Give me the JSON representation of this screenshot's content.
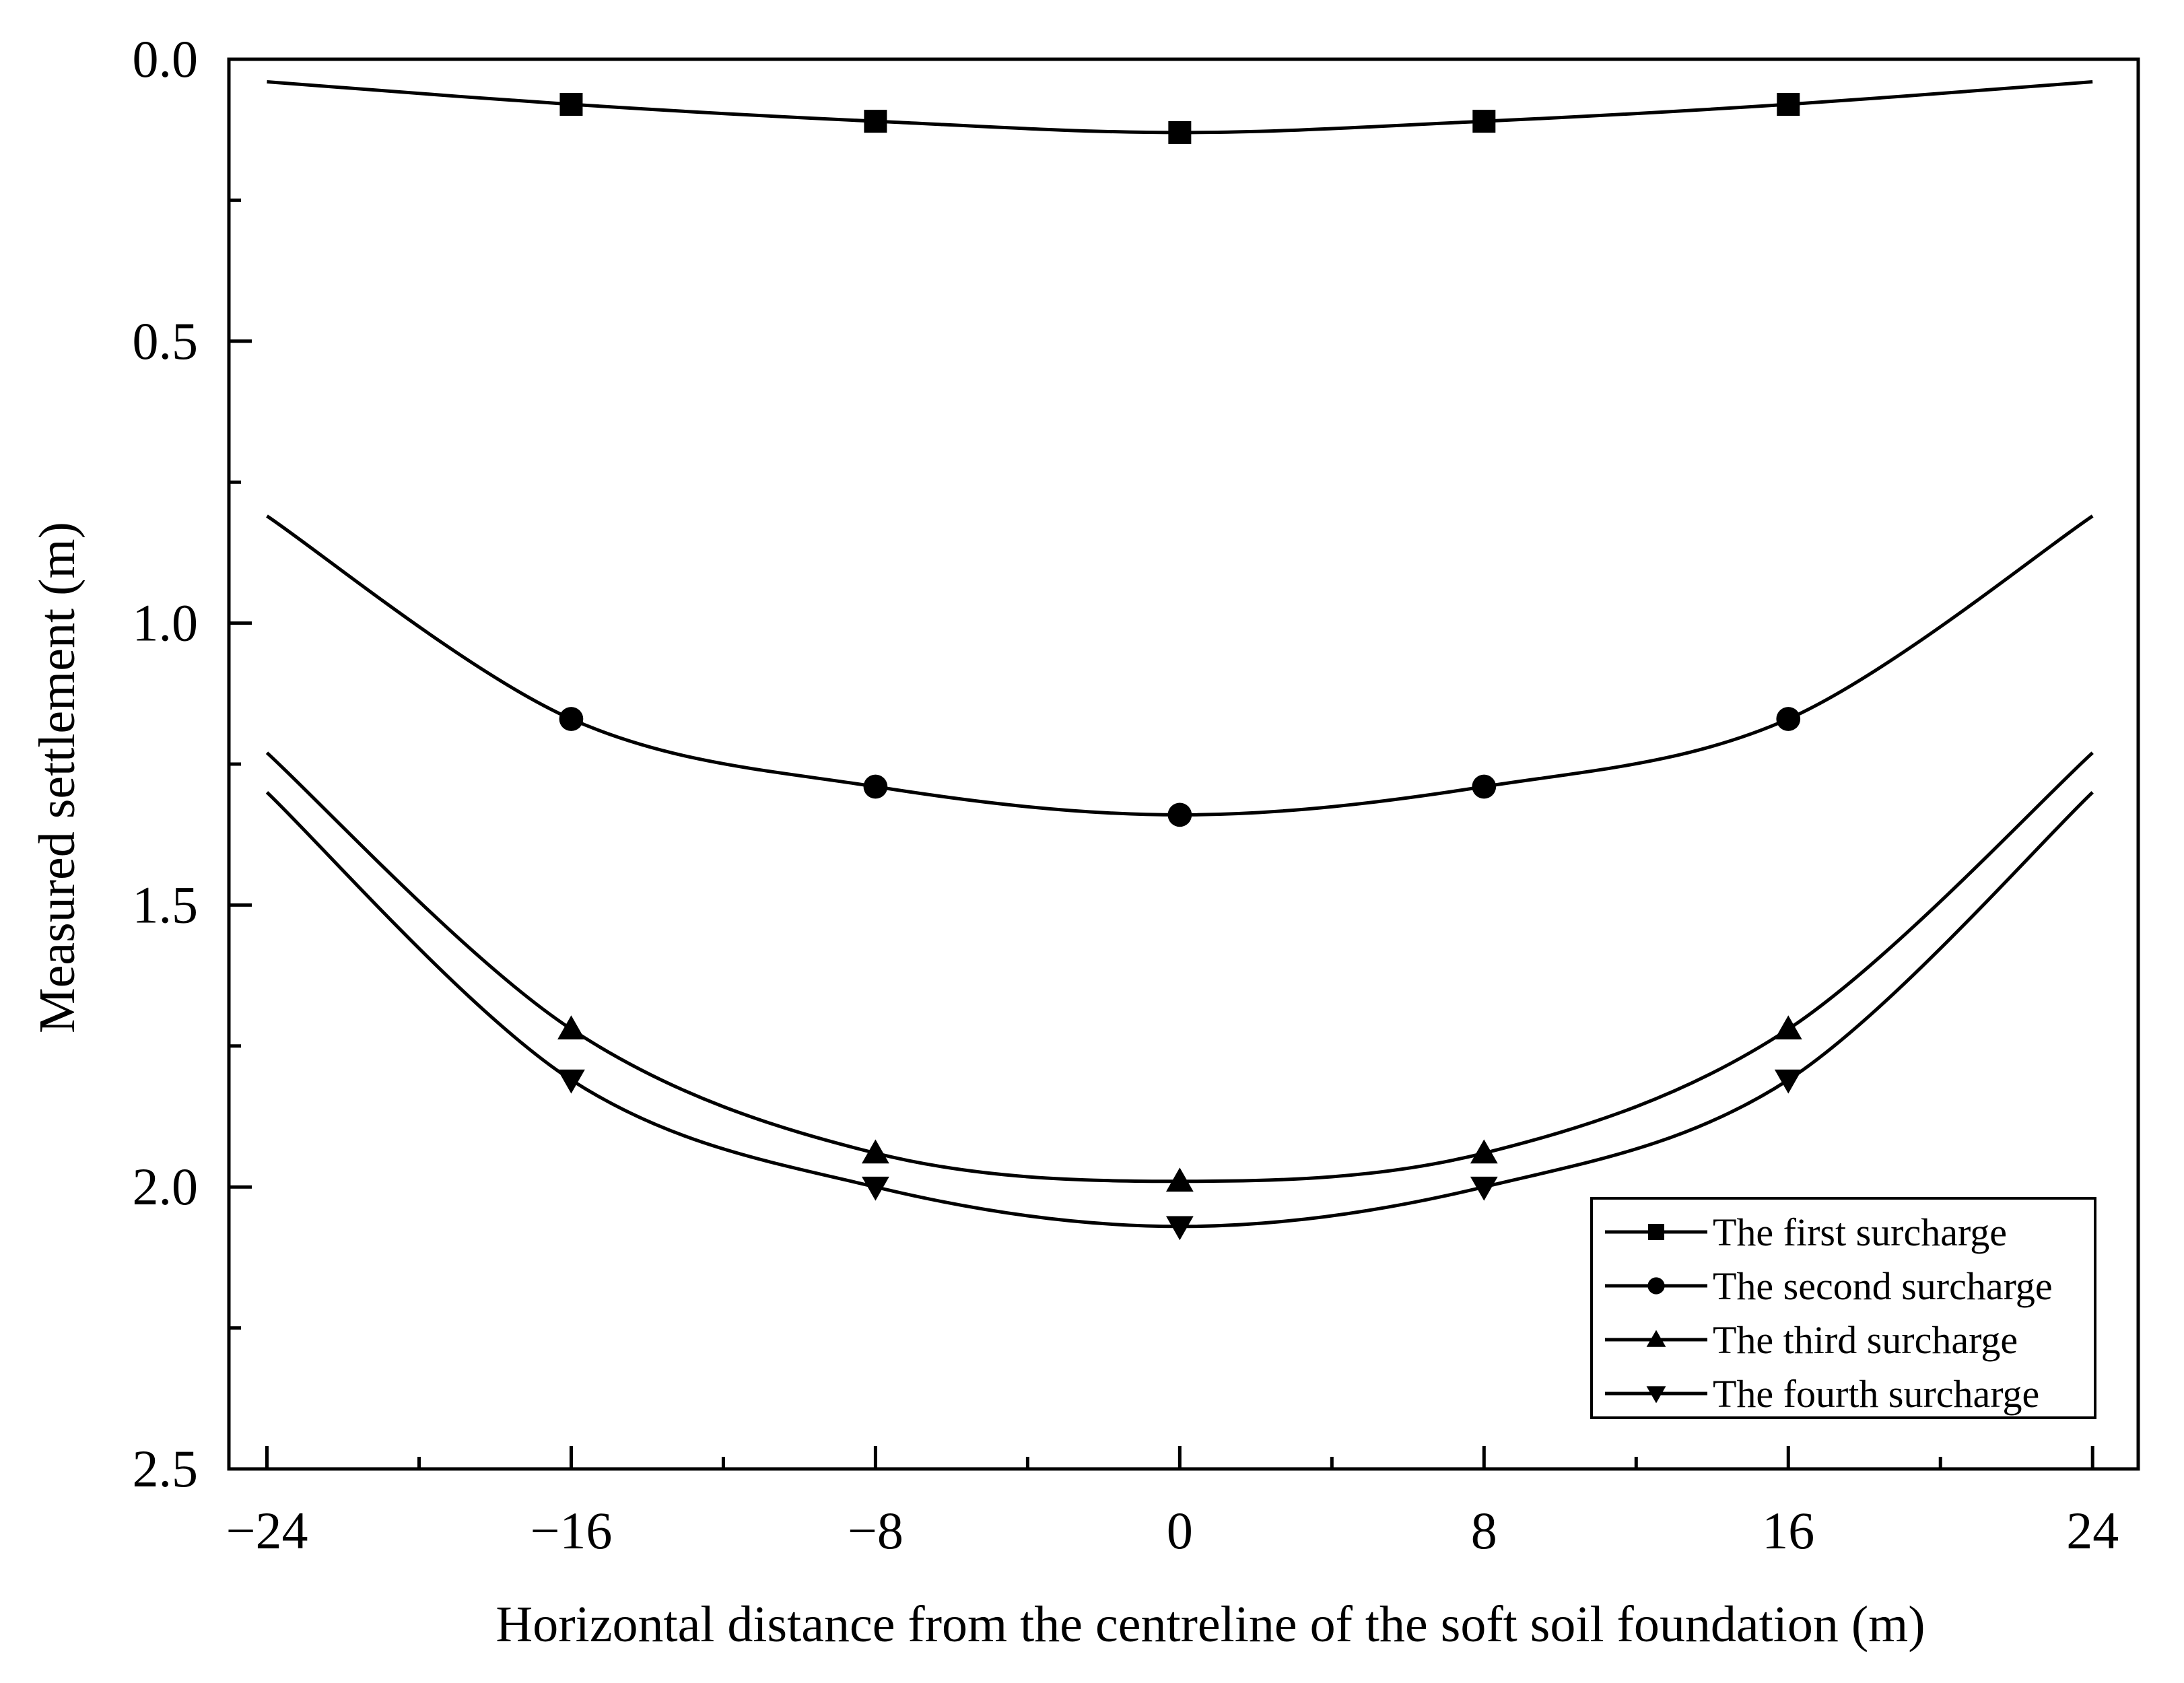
{
  "chart_data": {
    "type": "line",
    "xlabel": "Horizontal distance from the centreline of the soft soil foundation (m)",
    "ylabel": "Measured settlement (m)",
    "xlim": [
      -25,
      25.2
    ],
    "ylim": [
      0.0,
      2.5
    ],
    "y_inverted": true,
    "x_ticks": [
      -24,
      -16,
      -8,
      0,
      8,
      16,
      24
    ],
    "x_tick_labels": [
      "−24",
      "−16",
      "−8",
      "0",
      "8",
      "16",
      "24"
    ],
    "y_ticks": [
      0.0,
      0.5,
      1.0,
      1.5,
      2.0,
      2.5
    ],
    "y_tick_labels": [
      "0.0",
      "0.5",
      "1.0",
      "1.5",
      "2.0",
      "2.5"
    ],
    "grid": false,
    "legend_position": "bottom-right",
    "x": [
      -24,
      -16,
      -8,
      0,
      8,
      16,
      24
    ],
    "series": [
      {
        "name": "The first surcharge",
        "marker": "square",
        "values": [
          0.04,
          0.08,
          0.11,
          0.13,
          0.11,
          0.08,
          0.04
        ],
        "markers_at": [
          -16,
          -8,
          0,
          8,
          16
        ]
      },
      {
        "name": "The second surcharge",
        "marker": "circle",
        "values": [
          0.81,
          1.17,
          1.29,
          1.34,
          1.29,
          1.17,
          0.81
        ],
        "markers_at": [
          -16,
          -8,
          0,
          8,
          16
        ]
      },
      {
        "name": "The third surcharge",
        "marker": "triangle-up",
        "values": [
          1.23,
          1.72,
          1.94,
          1.99,
          1.94,
          1.72,
          1.23
        ],
        "markers_at": [
          -16,
          -8,
          0,
          8,
          16
        ]
      },
      {
        "name": "The fourth surcharge",
        "marker": "triangle-down",
        "values": [
          1.3,
          1.81,
          2.0,
          2.07,
          2.0,
          1.81,
          1.3
        ],
        "markers_at": [
          -16,
          -8,
          0,
          8,
          16
        ]
      }
    ],
    "colors": {
      "line": "#000000",
      "background": "#ffffff"
    }
  }
}
